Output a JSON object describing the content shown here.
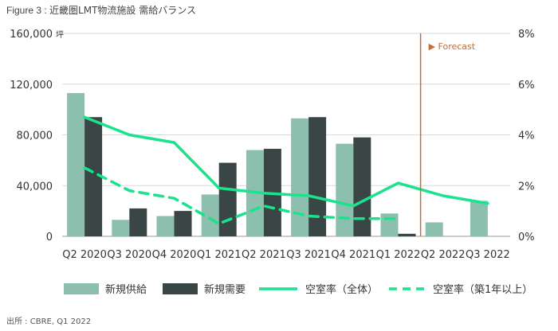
{
  "header": {
    "figure_label": "Figure 3 : ",
    "title": "近畿圏LMT物流施設 需給バランス"
  },
  "source": "出所 : CBRE, Q1 2022",
  "colors": {
    "supply": "#8dbfae",
    "demand": "#3a4645",
    "vacancy_all": "#19e38c",
    "vacancy_new": "#19e38c",
    "forecast": "#c0703a",
    "grid": "#d9d9d9"
  },
  "chart_data": {
    "type": "bar",
    "categories": [
      "Q2 2020",
      "Q3 2020",
      "Q4 2020",
      "Q1 2021",
      "Q2 2021",
      "Q3 2021",
      "Q4 2021",
      "Q1 2022",
      "Q2 2022",
      "Q3 2022"
    ],
    "series": [
      {
        "name": "新規供給",
        "type": "bar",
        "axis": "left",
        "values": [
          113000,
          13000,
          16000,
          33000,
          68000,
          93000,
          73000,
          18000,
          11000,
          28000
        ]
      },
      {
        "name": "新規需要",
        "type": "bar",
        "axis": "left",
        "values": [
          94000,
          22000,
          20000,
          58000,
          69000,
          94000,
          78000,
          2000,
          null,
          null
        ]
      },
      {
        "name": "空室率（全体）",
        "type": "line",
        "axis": "right",
        "style": "solid",
        "values": [
          4.7,
          4.0,
          3.7,
          1.9,
          1.7,
          1.6,
          1.2,
          2.1,
          1.6,
          1.3
        ]
      },
      {
        "name": "空室率（築1年以上）",
        "type": "line",
        "axis": "right",
        "style": "dashed",
        "values": [
          2.7,
          1.8,
          1.5,
          0.5,
          1.2,
          0.8,
          0.7,
          0.7,
          null,
          null
        ]
      }
    ],
    "y_left": {
      "ylim": [
        0,
        160000
      ],
      "ticks": [
        "0",
        "40,000",
        "80,000",
        "120,000",
        "160,000"
      ],
      "unit": "坪"
    },
    "y_right": {
      "ylim": [
        0,
        8
      ],
      "ticks": [
        "0%",
        "2%",
        "4%",
        "6%",
        "8%"
      ]
    },
    "forecast": {
      "label": "▶ Forecast",
      "after_category": "Q1 2022"
    },
    "grid": true,
    "legend_position": "bottom"
  }
}
